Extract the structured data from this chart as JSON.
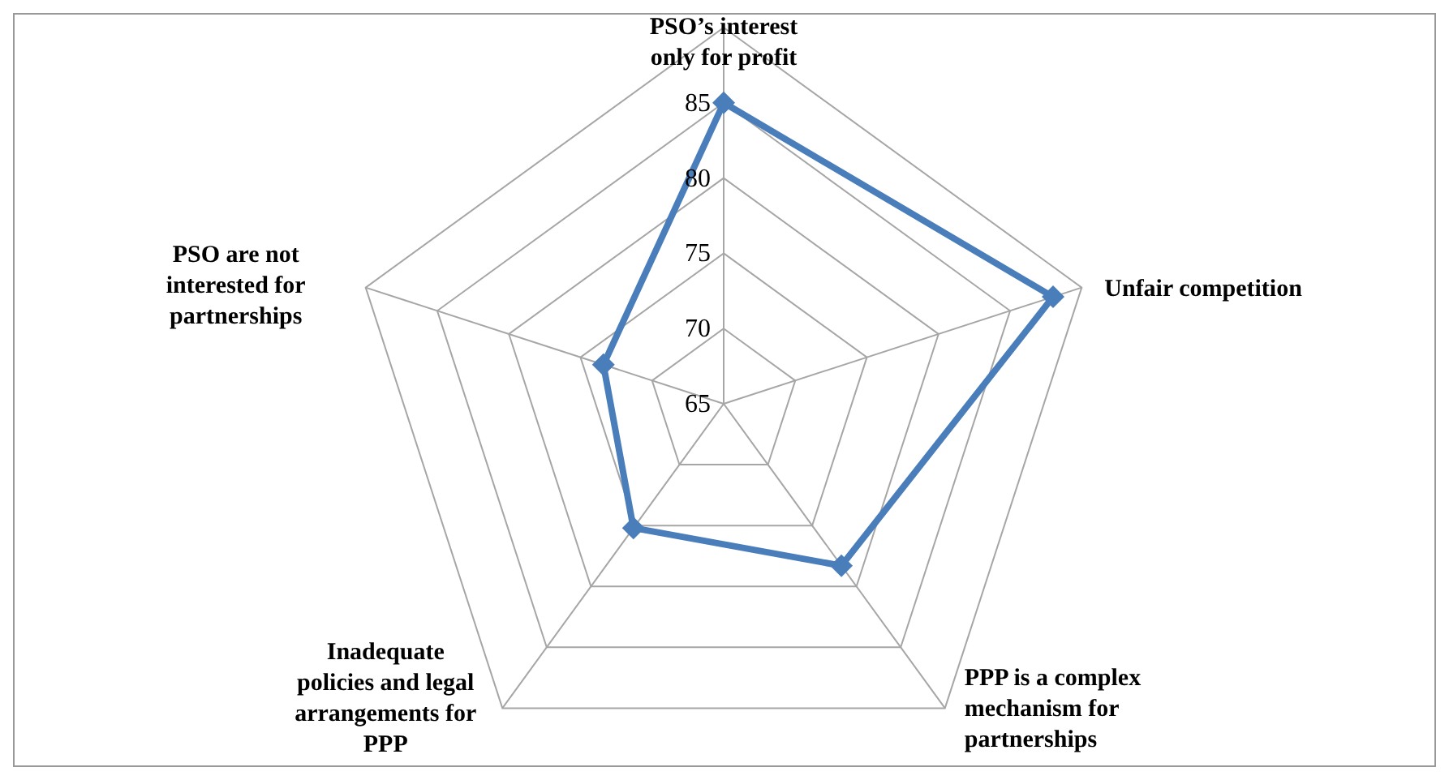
{
  "chart_data": {
    "type": "radar",
    "categories": [
      "PSO’s interest only for profit",
      "Unfair competition",
      "PPP is a complex mechanism for partnerships",
      "Inadequate policies and legal arrangements for PPP",
      "PSO are not interested for partnerships"
    ],
    "series": [
      {
        "color": "#4a7ebb",
        "values": [
          85,
          88,
          78.3,
          75.2,
          73.4
        ]
      }
    ],
    "ylim": [
      65,
      90
    ],
    "yticks": [
      65,
      70,
      75,
      80,
      85
    ],
    "grid": true,
    "legend": false,
    "marker": "diamond",
    "line_style": "solid"
  }
}
